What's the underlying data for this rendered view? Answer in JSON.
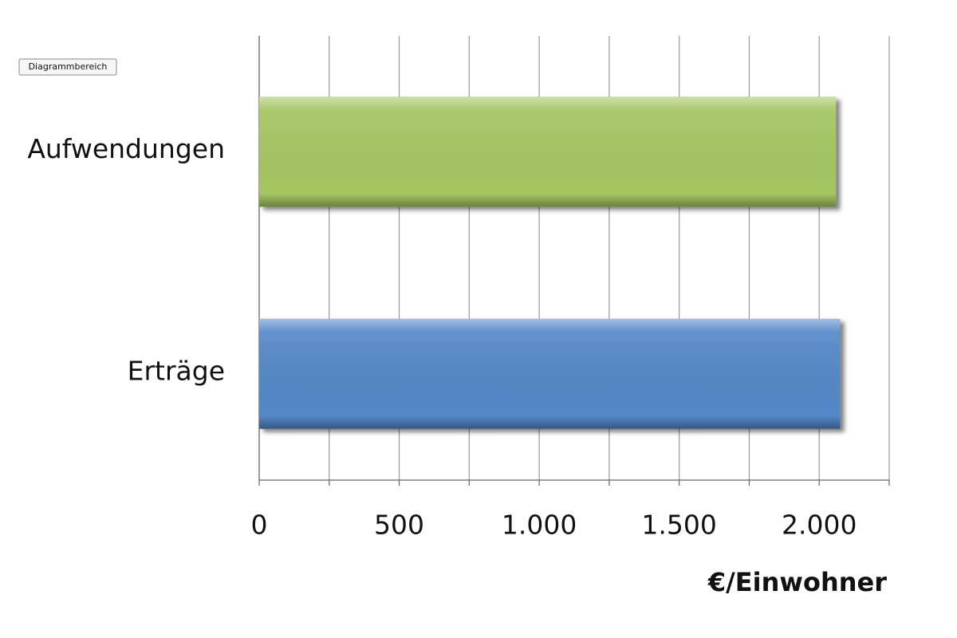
{
  "chart_data": {
    "type": "hbar",
    "tooltip": "Diagrammbereich",
    "x_label": "€/Einwohner",
    "categories": [
      "Aufwendungen",
      "Erträge"
    ],
    "values": [
      2060,
      2075
    ],
    "colors": [
      "#a5c663",
      "#5588c8"
    ],
    "xlim": [
      0,
      2250
    ],
    "xticks": [
      0,
      500,
      {
        "value": 1000,
        "label": "1.000"
      },
      {
        "value": 1500,
        "label": "1.500"
      },
      {
        "value": 2000,
        "label": "2.000"
      }
    ],
    "minor_xticks": [
      250,
      750,
      1250,
      1750,
      2250
    ],
    "grid": true
  }
}
